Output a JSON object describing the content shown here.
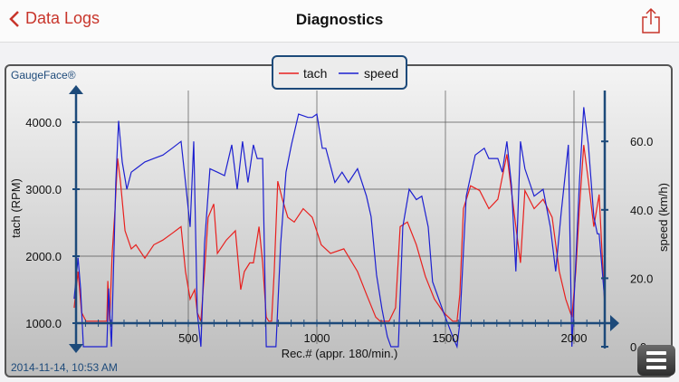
{
  "header": {
    "back_label": "Data Logs",
    "title": "Diagnostics"
  },
  "icons": {
    "back": "chevron-left-icon",
    "share": "share-icon",
    "menu": "hamburger-menu-icon"
  },
  "colors": {
    "accent": "#c8352b",
    "tach": "#e8201e",
    "speed": "#1d20d0",
    "axis": "#1d4a7a"
  },
  "brand": "GaugeFace®",
  "timestamp": "2014-11-14, 10:53 AM",
  "chart_data": {
    "type": "line",
    "xlabel": "Rec.# (appr. 180/min.)",
    "ylabel": "tach (RPM)",
    "y2label": "speed (km/h)",
    "xticks": [
      "500",
      "1000",
      "1500",
      "2000"
    ],
    "yticks": [
      "1000.0",
      "2000.0",
      "3000.0",
      "4000.0"
    ],
    "y2ticks": [
      "0.0",
      "20.0",
      "40.0",
      "60.0"
    ],
    "xlim": [
      60,
      2120
    ],
    "ylim": [
      620,
      4540
    ],
    "y2lim": [
      0,
      76
    ],
    "grid": true,
    "legend": "top-center",
    "series": [
      {
        "name": "tach",
        "axis": "left",
        "color": "#e8201e",
        "points": [
          [
            56,
            1230
          ],
          [
            71,
            1770
          ],
          [
            85,
            1160
          ],
          [
            102,
            1030
          ],
          [
            183,
            1030
          ],
          [
            187,
            1630
          ],
          [
            194,
            1030
          ],
          [
            204,
            2040
          ],
          [
            215,
            2710
          ],
          [
            225,
            3460
          ],
          [
            236,
            3120
          ],
          [
            254,
            2380
          ],
          [
            278,
            2110
          ],
          [
            296,
            2170
          ],
          [
            331,
            1970
          ],
          [
            366,
            2170
          ],
          [
            401,
            2240
          ],
          [
            437,
            2340
          ],
          [
            472,
            2440
          ],
          [
            489,
            1770
          ],
          [
            507,
            1360
          ],
          [
            525,
            1500
          ],
          [
            535,
            1160
          ],
          [
            549,
            1030
          ],
          [
            563,
            1770
          ],
          [
            577,
            2580
          ],
          [
            599,
            2780
          ],
          [
            613,
            2040
          ],
          [
            648,
            2240
          ],
          [
            683,
            2380
          ],
          [
            704,
            1500
          ],
          [
            718,
            1770
          ],
          [
            739,
            1900
          ],
          [
            753,
            1900
          ],
          [
            775,
            2440
          ],
          [
            789,
            1900
          ],
          [
            803,
            1090
          ],
          [
            813,
            1030
          ],
          [
            824,
            1030
          ],
          [
            834,
            1770
          ],
          [
            848,
            3120
          ],
          [
            866,
            2850
          ],
          [
            887,
            2580
          ],
          [
            912,
            2510
          ],
          [
            947,
            2710
          ],
          [
            982,
            2580
          ],
          [
            1017,
            2170
          ],
          [
            1053,
            2040
          ],
          [
            1105,
            2110
          ],
          [
            1158,
            1770
          ],
          [
            1193,
            1430
          ],
          [
            1229,
            1090
          ],
          [
            1246,
            1030
          ],
          [
            1281,
            1030
          ],
          [
            1306,
            1230
          ],
          [
            1324,
            2440
          ],
          [
            1352,
            2510
          ],
          [
            1387,
            2170
          ],
          [
            1422,
            1700
          ],
          [
            1457,
            1360
          ],
          [
            1493,
            1160
          ],
          [
            1528,
            1030
          ],
          [
            1545,
            1030
          ],
          [
            1556,
            1430
          ],
          [
            1570,
            2710
          ],
          [
            1598,
            3050
          ],
          [
            1633,
            2980
          ],
          [
            1669,
            2710
          ],
          [
            1704,
            2850
          ],
          [
            1739,
            3520
          ],
          [
            1774,
            2440
          ],
          [
            1792,
            1900
          ],
          [
            1809,
            2980
          ],
          [
            1845,
            2710
          ],
          [
            1880,
            2850
          ],
          [
            1915,
            2580
          ],
          [
            1943,
            1770
          ],
          [
            1968,
            1360
          ],
          [
            1992,
            1090
          ],
          [
            2007,
            1770
          ],
          [
            2021,
            2710
          ],
          [
            2038,
            3660
          ],
          [
            2056,
            3120
          ],
          [
            2077,
            2440
          ],
          [
            2098,
            2920
          ],
          [
            2119,
            1300
          ]
        ]
      },
      {
        "name": "speed",
        "axis": "right",
        "color": "#1d20d0",
        "points": [
          [
            56,
            14
          ],
          [
            71,
            26
          ],
          [
            81,
            17
          ],
          [
            92,
            0
          ],
          [
            183,
            0
          ],
          [
            190,
            17
          ],
          [
            201,
            0
          ],
          [
            218,
            48
          ],
          [
            229,
            66
          ],
          [
            243,
            54
          ],
          [
            261,
            46
          ],
          [
            278,
            51
          ],
          [
            296,
            52
          ],
          [
            331,
            54
          ],
          [
            366,
            55
          ],
          [
            401,
            56
          ],
          [
            437,
            58
          ],
          [
            472,
            60
          ],
          [
            489,
            48
          ],
          [
            507,
            35
          ],
          [
            521,
            60
          ],
          [
            535,
            10
          ],
          [
            549,
            0
          ],
          [
            563,
            30
          ],
          [
            584,
            52
          ],
          [
            613,
            51
          ],
          [
            641,
            50
          ],
          [
            669,
            59
          ],
          [
            690,
            46
          ],
          [
            711,
            60
          ],
          [
            732,
            48
          ],
          [
            753,
            59
          ],
          [
            768,
            55
          ],
          [
            789,
            55
          ],
          [
            803,
            0
          ],
          [
            841,
            0
          ],
          [
            859,
            30
          ],
          [
            880,
            51
          ],
          [
            901,
            59
          ],
          [
            929,
            68
          ],
          [
            965,
            67
          ],
          [
            982,
            67
          ],
          [
            1000,
            68
          ],
          [
            1021,
            58
          ],
          [
            1035,
            58
          ],
          [
            1070,
            48
          ],
          [
            1098,
            51
          ],
          [
            1123,
            48
          ],
          [
            1158,
            52
          ],
          [
            1193,
            44
          ],
          [
            1211,
            38
          ],
          [
            1232,
            21
          ],
          [
            1253,
            11
          ],
          [
            1274,
            3
          ],
          [
            1288,
            0
          ],
          [
            1317,
            0
          ],
          [
            1334,
            35
          ],
          [
            1359,
            46
          ],
          [
            1387,
            43
          ],
          [
            1408,
            44
          ],
          [
            1433,
            35
          ],
          [
            1450,
            19
          ],
          [
            1493,
            10
          ],
          [
            1528,
            3
          ],
          [
            1545,
            0
          ],
          [
            1556,
            7
          ],
          [
            1581,
            44
          ],
          [
            1616,
            56
          ],
          [
            1651,
            58
          ],
          [
            1669,
            55
          ],
          [
            1704,
            55
          ],
          [
            1721,
            51
          ],
          [
            1739,
            60
          ],
          [
            1757,
            47
          ],
          [
            1774,
            22
          ],
          [
            1792,
            60
          ],
          [
            1809,
            52
          ],
          [
            1845,
            44
          ],
          [
            1880,
            46
          ],
          [
            1908,
            35
          ],
          [
            1929,
            22
          ],
          [
            1950,
            39
          ],
          [
            1978,
            59
          ],
          [
            1992,
            0
          ],
          [
            2021,
            48
          ],
          [
            2038,
            70
          ],
          [
            2056,
            59
          ],
          [
            2077,
            38
          ],
          [
            2091,
            33
          ],
          [
            2098,
            33
          ],
          [
            2119,
            14
          ]
        ]
      }
    ]
  }
}
